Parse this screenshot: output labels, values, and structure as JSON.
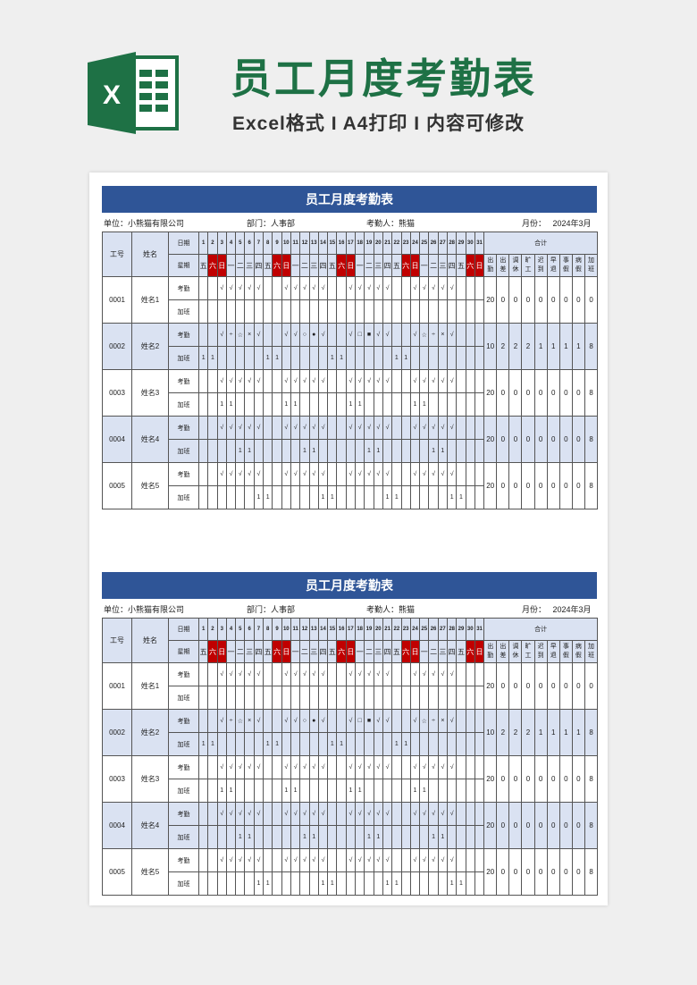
{
  "banner": {
    "title": "员工月度考勤表",
    "subtitle": "Excel格式 I A4打印 I 内容可修改",
    "logo_letter": "X",
    "brand_color": "#1e7145"
  },
  "sheet": {
    "title": "员工月度考勤表",
    "unit_label": "单位：",
    "unit": "小熊猫有限公司",
    "dept_label": "部门：",
    "dept": "人事部",
    "checker_label": "考勤人：",
    "checker": "熊猫",
    "month_label": "月份：",
    "month": "2024年3月",
    "col_id": "工号",
    "col_name": "姓名",
    "row_date": "日期",
    "row_weekday": "星期",
    "row_attendance": "考勤",
    "row_overtime": "加班",
    "total_label": "合计",
    "total_cols": [
      "出勤",
      "出差",
      "调休",
      "旷工",
      "迟到",
      "早退",
      "事假",
      "病假",
      "加班"
    ],
    "days": [
      1,
      2,
      3,
      4,
      5,
      6,
      7,
      8,
      9,
      10,
      11,
      12,
      13,
      14,
      15,
      16,
      17,
      18,
      19,
      20,
      21,
      22,
      23,
      24,
      25,
      26,
      27,
      28,
      29,
      30,
      31
    ],
    "weekdays": [
      "五",
      "六",
      "日",
      "一",
      "二",
      "三",
      "四",
      "五",
      "六",
      "日",
      "一",
      "二",
      "三",
      "四",
      "五",
      "六",
      "日",
      "一",
      "二",
      "三",
      "四",
      "五",
      "六",
      "日",
      "一",
      "二",
      "三",
      "四",
      "五",
      "六",
      "日"
    ],
    "weekend_color": "#c00000",
    "header_color": "#2f5597",
    "band_color": "#dae2f2",
    "employees": [
      {
        "id": "0001",
        "name": "姓名1",
        "attendance": [
          "",
          "",
          "√",
          "√",
          "√",
          "√",
          "√",
          "",
          "",
          "√",
          "√",
          "√",
          "√",
          "√",
          "",
          "",
          "√",
          "√",
          "√",
          "√",
          "√",
          "",
          "",
          "√",
          "√",
          "√",
          "√",
          "√",
          "",
          "",
          ""
        ],
        "overtime": [
          "",
          "",
          "",
          "",
          "",
          "",
          "",
          "",
          "",
          "",
          "",
          "",
          "",
          "",
          "",
          "",
          "",
          "",
          "",
          "",
          "",
          "",
          "",
          "",
          "",
          "",
          "",
          "",
          "",
          "",
          ""
        ],
        "totals": [
          "20",
          "0",
          "0",
          "0",
          "0",
          "0",
          "0",
          "0",
          "0"
        ]
      },
      {
        "id": "0002",
        "name": "姓名2",
        "attendance": [
          "",
          "",
          "√",
          "÷",
          "☆",
          "×",
          "√",
          "",
          "",
          "√",
          "√",
          "○",
          "●",
          "√",
          "",
          "",
          "√",
          "□",
          "■",
          "√",
          "√",
          "",
          "",
          "√",
          "☆",
          "÷",
          "×",
          "√",
          "",
          "",
          ""
        ],
        "overtime": [
          "1",
          "1",
          "",
          "",
          "",
          "",
          "",
          "1",
          "1",
          "",
          "",
          "",
          "",
          "",
          "1",
          "1",
          "",
          "",
          "",
          "",
          "",
          "1",
          "1",
          "",
          "",
          "",
          "",
          "",
          "",
          "",
          ""
        ],
        "totals": [
          "10",
          "2",
          "2",
          "2",
          "1",
          "1",
          "1",
          "1",
          "8"
        ]
      },
      {
        "id": "0003",
        "name": "姓名3",
        "attendance": [
          "",
          "",
          "√",
          "√",
          "√",
          "√",
          "√",
          "",
          "",
          "√",
          "√",
          "√",
          "√",
          "√",
          "",
          "",
          "√",
          "√",
          "√",
          "√",
          "√",
          "",
          "",
          "√",
          "√",
          "√",
          "√",
          "√",
          "",
          "",
          ""
        ],
        "overtime": [
          "",
          "",
          "1",
          "1",
          "",
          "",
          "",
          "",
          "",
          "1",
          "1",
          "",
          "",
          "",
          "",
          "",
          "1",
          "1",
          "",
          "",
          "",
          "",
          "",
          "1",
          "1",
          "",
          "",
          "",
          "",
          "",
          ""
        ],
        "totals": [
          "20",
          "0",
          "0",
          "0",
          "0",
          "0",
          "0",
          "0",
          "8"
        ]
      },
      {
        "id": "0004",
        "name": "姓名4",
        "attendance": [
          "",
          "",
          "√",
          "√",
          "√",
          "√",
          "√",
          "",
          "",
          "√",
          "√",
          "√",
          "√",
          "√",
          "",
          "",
          "√",
          "√",
          "√",
          "√",
          "√",
          "",
          "",
          "√",
          "√",
          "√",
          "√",
          "√",
          "",
          "",
          ""
        ],
        "overtime": [
          "",
          "",
          "",
          "",
          "1",
          "1",
          "",
          "",
          "",
          "",
          "",
          "1",
          "1",
          "",
          "",
          "",
          "",
          "",
          "1",
          "1",
          "",
          "",
          "",
          "",
          "",
          "1",
          "1",
          "",
          "",
          "",
          ""
        ],
        "totals": [
          "20",
          "0",
          "0",
          "0",
          "0",
          "0",
          "0",
          "0",
          "8"
        ]
      },
      {
        "id": "0005",
        "name": "姓名5",
        "attendance": [
          "",
          "",
          "√",
          "√",
          "√",
          "√",
          "√",
          "",
          "",
          "√",
          "√",
          "√",
          "√",
          "√",
          "",
          "",
          "√",
          "√",
          "√",
          "√",
          "√",
          "",
          "",
          "√",
          "√",
          "√",
          "√",
          "√",
          "",
          "",
          ""
        ],
        "overtime": [
          "",
          "",
          "",
          "",
          "",
          "",
          "1",
          "1",
          "",
          "",
          "",
          "",
          "",
          "1",
          "1",
          "",
          "",
          "",
          "",
          "",
          "1",
          "1",
          "",
          "",
          "",
          "",
          "",
          "1",
          "1",
          "",
          ""
        ],
        "totals": [
          "20",
          "0",
          "0",
          "0",
          "0",
          "0",
          "0",
          "0",
          "8"
        ]
      }
    ]
  }
}
